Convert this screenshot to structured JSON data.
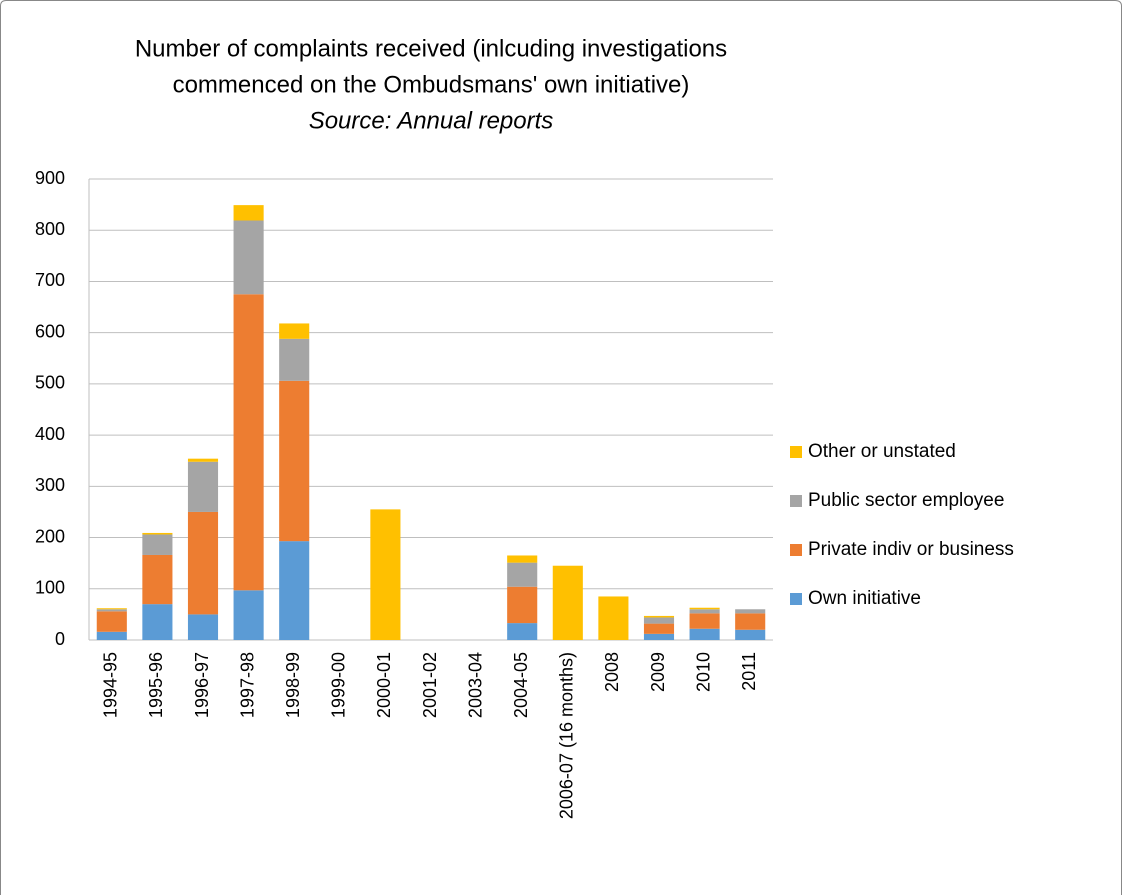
{
  "chart_data": {
    "type": "stacked_bar",
    "title": [
      "Number of complaints received (inlcuding investigations",
      "commenced on the Ombudsmans' own initiative)"
    ],
    "subtitle": "Source: Annual reports",
    "categories": [
      "1994-95",
      "1995-96",
      "1996-97",
      "1997-98",
      "1998-99",
      "1999-00",
      "2000-01",
      "2001-02",
      "2003-04",
      "2004-05",
      "2006-07 (16 months)",
      "2008",
      "2009",
      "2010",
      "2011"
    ],
    "series": [
      {
        "name": "Own initiative",
        "color": "#5b9bd5",
        "values": [
          16,
          70,
          50,
          97,
          193,
          0,
          0,
          0,
          0,
          33,
          0,
          0,
          12,
          22,
          20
        ]
      },
      {
        "name": "Private indiv or business",
        "color": "#ed7d31",
        "values": [
          40,
          96,
          200,
          578,
          313,
          0,
          0,
          0,
          0,
          71,
          0,
          0,
          20,
          30,
          32
        ]
      },
      {
        "name": "Public sector employee",
        "color": "#a5a5a5",
        "values": [
          4,
          40,
          98,
          144,
          82,
          0,
          0,
          0,
          0,
          47,
          0,
          0,
          12,
          8,
          8
        ]
      },
      {
        "name": "Other or unstated",
        "color": "#ffc000",
        "values": [
          2,
          3,
          6,
          30,
          30,
          0,
          255,
          0,
          0,
          14,
          145,
          85,
          3,
          3,
          0
        ]
      }
    ],
    "ylim": [
      0,
      900
    ],
    "yticks": [
      0,
      100,
      200,
      300,
      400,
      500,
      600,
      700,
      800,
      900
    ],
    "grid": true,
    "legend": "right"
  }
}
